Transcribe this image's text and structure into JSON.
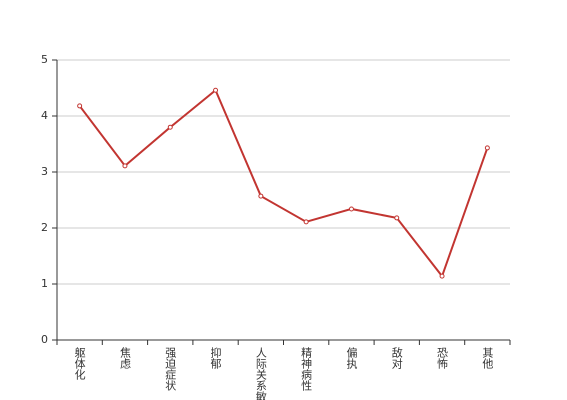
{
  "chart_data": {
    "type": "line",
    "categories": [
      "躯体化",
      "焦虑",
      "强迫症状",
      "抑郁",
      "人际关系敏感",
      "精神病性",
      "偏执",
      "敌对",
      "恐怖",
      "其他"
    ],
    "series": [
      {
        "color": "#c23531",
        "values": [
          4.18,
          3.11,
          3.8,
          4.46,
          2.57,
          2.11,
          2.34,
          2.18,
          1.14,
          3.43
        ]
      }
    ],
    "ylim": [
      0,
      5
    ],
    "yticks": [
      0,
      1,
      2,
      3,
      4,
      5
    ],
    "grid": true
  }
}
